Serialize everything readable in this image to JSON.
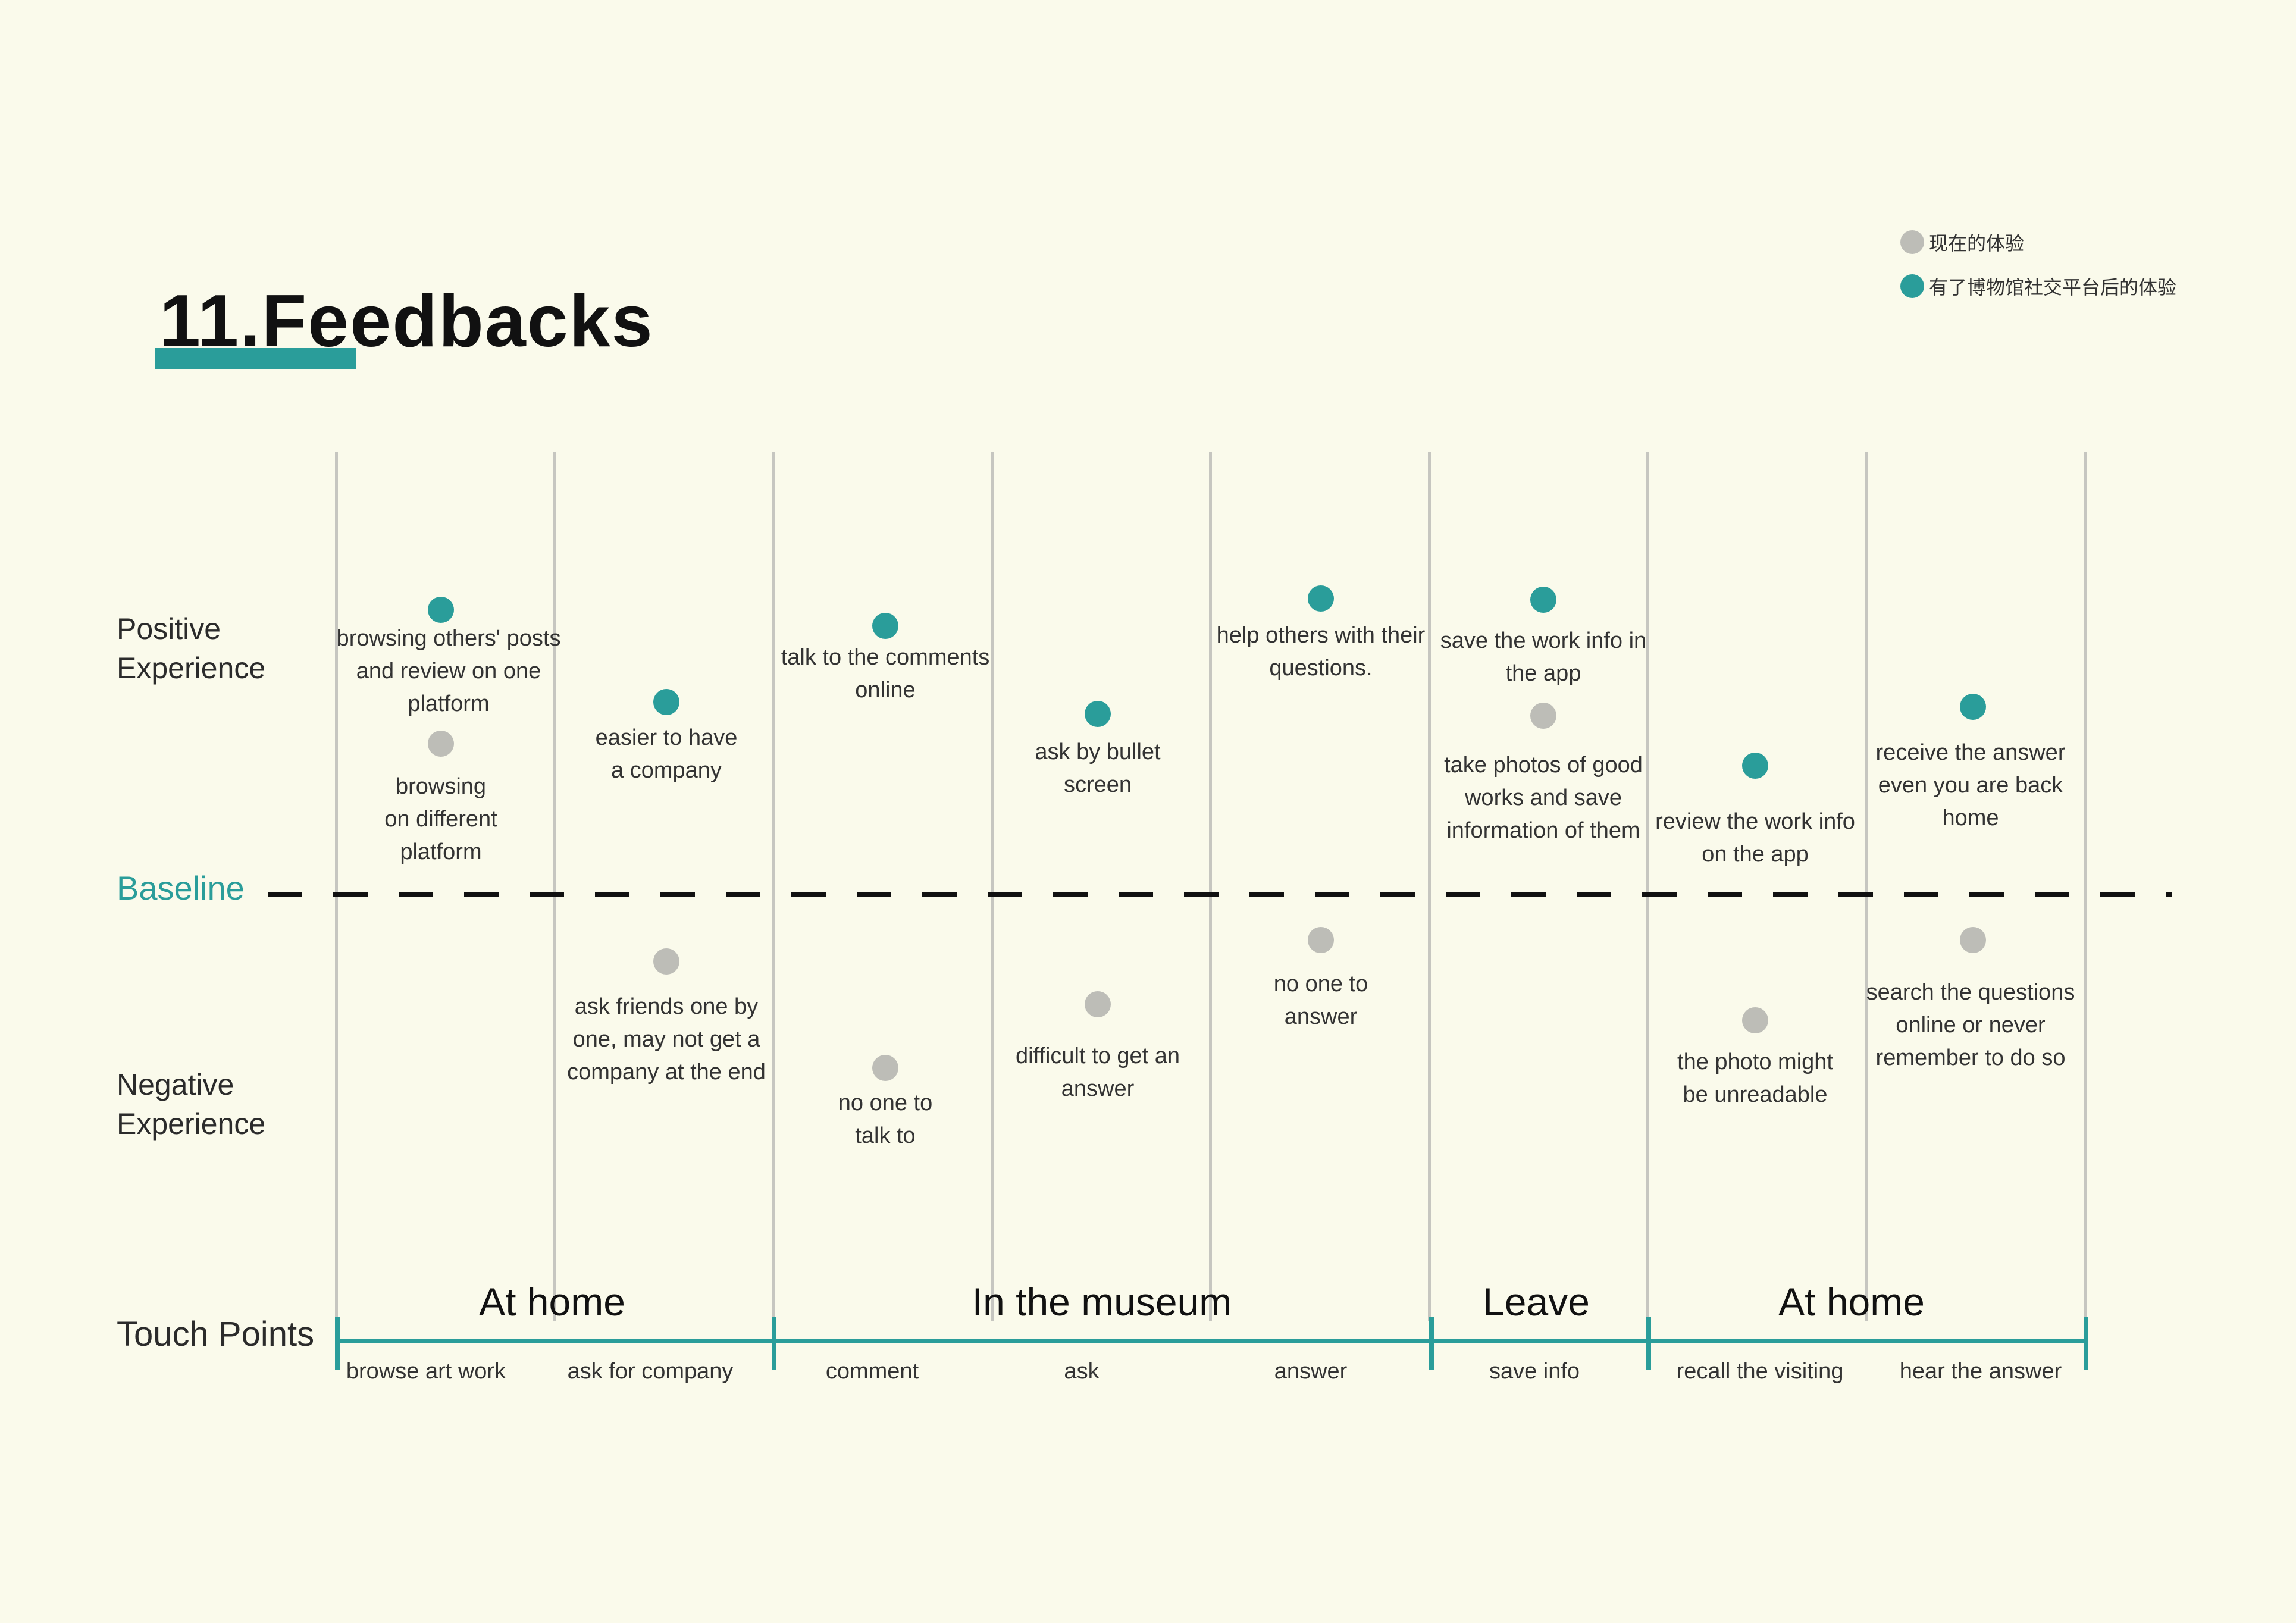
{
  "title": "11.Feedbacks",
  "legend": {
    "current": {
      "label": "现在的体验",
      "color": "#bdbdb7"
    },
    "with_platform": {
      "label": "有了博物馆社交平台后的体验",
      "color": "#2a9d9a"
    }
  },
  "rows": {
    "positive": "Positive\nExperience",
    "baseline": "Baseline",
    "negative": "Negative\nExperience",
    "touch_points": "Touch Points"
  },
  "phases": [
    "At home",
    "In the museum",
    "Leave",
    "At home"
  ],
  "touch_points": [
    "browse art work",
    "ask for company",
    "comment",
    "ask",
    "answer",
    "save info",
    "recall the visiting",
    "hear the answer"
  ],
  "notes": {
    "browse_teal": "browsing others' posts\nand review on one\nplatform",
    "browse_grey": "browsing\non different\nplatform",
    "company_teal": "easier to have\na company",
    "company_grey": "ask friends one by\none, may not get a\ncompany at the end",
    "comment_teal": "talk to the comments\nonline",
    "comment_grey": "no one to\ntalk to",
    "ask_teal": "ask by bullet\nscreen",
    "ask_grey": "difficult to get an\nanswer",
    "answer_teal": "help others with their\nquestions.",
    "answer_grey": "no one to\nanswer",
    "save_teal": "save the work info in\nthe app",
    "save_grey": "take photos of good\nworks and save\ninformation of them",
    "recall_teal": "review the work info\non the app",
    "recall_grey": "the photo might\nbe unreadable",
    "hear_teal": "receive the answer\neven you are back\nhome",
    "hear_grey": "search the questions\nonline or never\nremember to do so"
  }
}
